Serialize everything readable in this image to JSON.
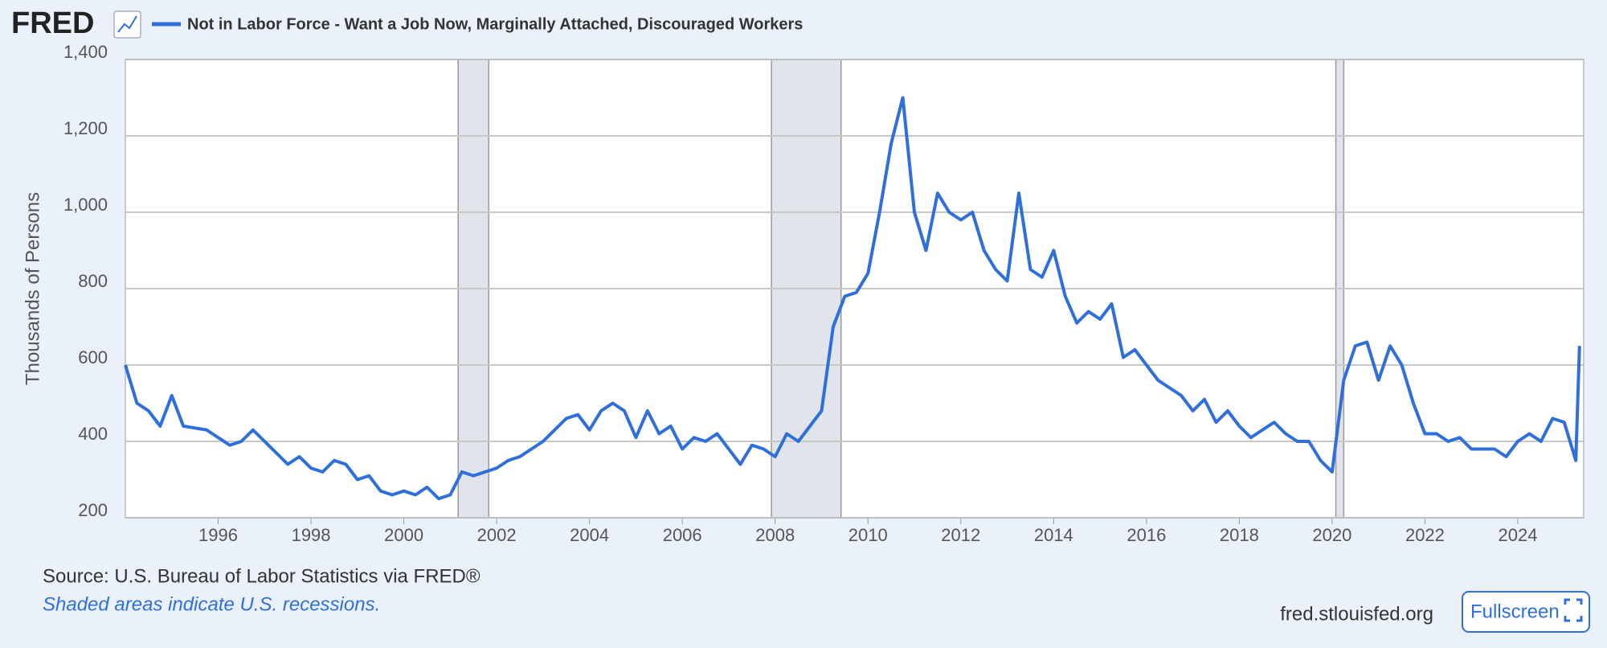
{
  "logo": "FRED",
  "source": "Source: U.S. Bureau of Labor Statistics via FRED®",
  "note": "Shaded areas indicate U.S. recessions.",
  "site": "fred.stlouisfed.org",
  "button": "Fullscreen",
  "chart_data": {
    "type": "line",
    "y_label": "Thousands of Persons",
    "x": [
      1994,
      1994.25,
      1994.5,
      1994.75,
      1995,
      1995.25,
      1995.5,
      1995.75,
      1996,
      1996.25,
      1996.5,
      1996.75,
      1997,
      1997.25,
      1997.5,
      1997.75,
      1998,
      1998.25,
      1998.5,
      1998.75,
      1999,
      1999.25,
      1999.5,
      1999.75,
      2000,
      2000.25,
      2000.5,
      2000.75,
      2001,
      2001.25,
      2001.5,
      2001.75,
      2002,
      2002.25,
      2002.5,
      2002.75,
      2003,
      2003.25,
      2003.5,
      2003.75,
      2004,
      2004.25,
      2004.5,
      2004.75,
      2005,
      2005.25,
      2005.5,
      2005.75,
      2006,
      2006.25,
      2006.5,
      2006.75,
      2007,
      2007.25,
      2007.5,
      2007.75,
      2008,
      2008.25,
      2008.5,
      2008.75,
      2009,
      2009.25,
      2009.5,
      2009.75,
      2010,
      2010.25,
      2010.5,
      2010.75,
      2011,
      2011.25,
      2011.5,
      2011.75,
      2012,
      2012.25,
      2012.5,
      2012.75,
      2013,
      2013.25,
      2013.5,
      2013.75,
      2014,
      2014.25,
      2014.5,
      2014.75,
      2015,
      2015.25,
      2015.5,
      2015.75,
      2016,
      2016.25,
      2016.5,
      2016.75,
      2017,
      2017.25,
      2017.5,
      2017.75,
      2018,
      2018.25,
      2018.5,
      2018.75,
      2019,
      2019.25,
      2019.5,
      2019.75,
      2020,
      2020.25,
      2020.5,
      2020.75,
      2021,
      2021.25,
      2021.5,
      2021.75,
      2022,
      2022.25,
      2022.5,
      2022.75,
      2023,
      2023.25,
      2023.5,
      2023.75,
      2024,
      2024.25,
      2024.5,
      2024.75,
      2025,
      2025.25,
      2025.33
    ],
    "series": [
      {
        "name": "Not in Labor Force - Want a Job Now, Marginally Attached, Discouraged Workers",
        "color": "#2f6fdc",
        "values": [
          600,
          500,
          480,
          440,
          520,
          440,
          435,
          430,
          410,
          390,
          400,
          430,
          400,
          370,
          340,
          360,
          330,
          320,
          350,
          340,
          300,
          310,
          270,
          260,
          270,
          260,
          280,
          250,
          260,
          320,
          310,
          320,
          330,
          350,
          360,
          380,
          400,
          430,
          460,
          470,
          430,
          480,
          500,
          480,
          410,
          480,
          420,
          440,
          380,
          410,
          400,
          420,
          380,
          340,
          390,
          380,
          360,
          420,
          400,
          440,
          480,
          700,
          780,
          790,
          840,
          1000,
          1180,
          1300,
          1000,
          900,
          1050,
          1000,
          980,
          1000,
          900,
          850,
          820,
          1050,
          850,
          830,
          900,
          780,
          710,
          740,
          720,
          760,
          620,
          640,
          600,
          560,
          540,
          520,
          480,
          510,
          450,
          480,
          440,
          410,
          430,
          450,
          420,
          400,
          400,
          350,
          320,
          560,
          650,
          660,
          560,
          650,
          600,
          500,
          420,
          420,
          400,
          410,
          380,
          380,
          380,
          360,
          400,
          420,
          400,
          460,
          450,
          350,
          650
        ]
      }
    ],
    "recessions": [
      [
        2001.17,
        2001.83
      ],
      [
        2007.92,
        2009.42
      ],
      [
        2020.08,
        2020.25
      ]
    ],
    "xlim": [
      1994,
      2025.42
    ],
    "ylim": [
      200,
      1400
    ],
    "xticks": [
      1996,
      1998,
      2000,
      2002,
      2004,
      2006,
      2008,
      2010,
      2012,
      2014,
      2016,
      2018,
      2020,
      2022,
      2024
    ],
    "yticks": [
      200,
      400,
      600,
      800,
      {
        "value": 1000,
        "label": "1,000"
      },
      {
        "value": 1200,
        "label": "1,200"
      },
      {
        "value": 1400,
        "label": "1,400"
      }
    ],
    "grid": true
  }
}
